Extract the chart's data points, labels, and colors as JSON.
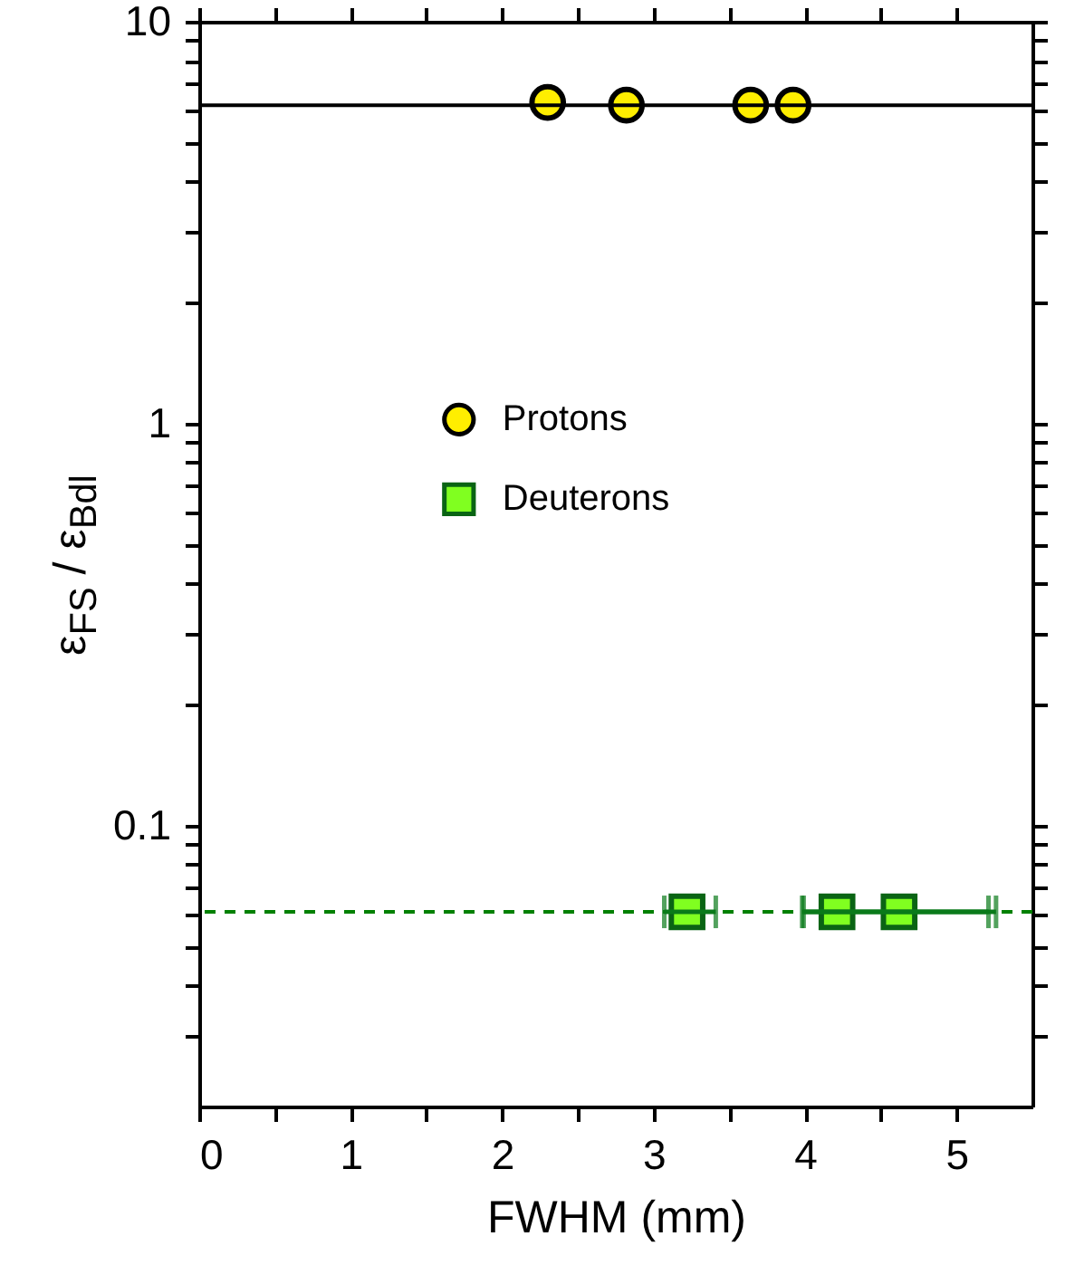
{
  "chart_data": {
    "type": "scatter",
    "xlabel": "FWHM (mm)",
    "ylabel": "ε$_{FS}$ / ε$_{Bdl}$",
    "log": "y",
    "xlim": [
      0,
      5.5
    ],
    "ylim": [
      0.02,
      10
    ],
    "xticks": [
      0,
      {
        "value": 0.5,
        "label": null
      },
      1,
      {
        "value": 1.5,
        "label": null
      },
      2,
      {
        "value": 2.5,
        "label": null
      },
      3,
      {
        "value": 3.5,
        "label": null
      },
      4,
      {
        "value": 4.5,
        "label": null
      },
      5
    ],
    "yticks": [
      {
        "value": 0.03,
        "label": null
      },
      {
        "value": 0.04,
        "label": null
      },
      {
        "value": 0.05,
        "label": null
      },
      {
        "value": 0.06,
        "label": null
      },
      {
        "value": 0.07,
        "label": null
      },
      {
        "value": 0.08,
        "label": null
      },
      {
        "value": 0.09,
        "label": null
      },
      0.1,
      {
        "value": 0.2,
        "label": null
      },
      {
        "value": 0.3,
        "label": null
      },
      {
        "value": 0.4,
        "label": null
      },
      {
        "value": 0.5,
        "label": null
      },
      {
        "value": 0.6,
        "label": null
      },
      {
        "value": 0.7,
        "label": null
      },
      {
        "value": 0.8,
        "label": null
      },
      {
        "value": 0.9,
        "label": null
      },
      1,
      {
        "value": 2,
        "label": null
      },
      {
        "value": 3,
        "label": null
      },
      {
        "value": 4,
        "label": null
      },
      {
        "value": 5,
        "label": null
      },
      {
        "value": 6,
        "label": null
      },
      {
        "value": 7,
        "label": null
      },
      {
        "value": 8,
        "label": null
      },
      {
        "value": 9,
        "label": null
      },
      10
    ],
    "grid": false,
    "legend": "upper center",
    "series": [
      {
        "name": "Protons",
        "color": "#ffee00",
        "marker": "circle",
        "x": [
          2.3,
          2.82,
          3.64,
          3.92
        ],
        "values": [
          6.3,
          6.2,
          6.2,
          6.2
        ]
      },
      {
        "name": "Deuterons",
        "color": "#80ff20",
        "marker": "square",
        "x": [
          3.22,
          4.21,
          4.62
        ],
        "values": [
          0.061,
          0.061,
          0.061
        ],
        "xerrors": [
          [
            3.07,
            3.41
          ],
          [
            3.98,
            5.21
          ],
          [
            3.99,
            5.26
          ]
        ]
      }
    ],
    "ref_lines": [
      {
        "axis": "y",
        "value": 6.2,
        "color": "#000000",
        "line_style": "solid"
      },
      {
        "axis": "y",
        "value": 0.061,
        "color": "#008000",
        "line_style": "dashed"
      }
    ]
  }
}
